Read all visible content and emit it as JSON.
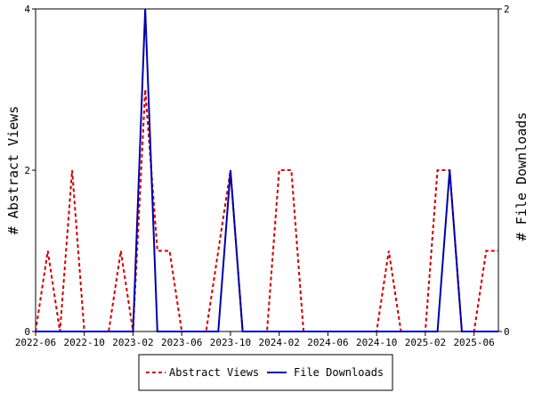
{
  "chart_data": {
    "type": "line",
    "ylabel_left": "# Abstract Views",
    "ylabel_right": "# File Downloads",
    "x_tick_labels": [
      "2022-06",
      "2022-10",
      "2023-02",
      "2023-06",
      "2023-10",
      "2024-02",
      "2024-06",
      "2024-10",
      "2025-02",
      "2025-06"
    ],
    "y_left_ticks": [
      "0",
      "2",
      "4"
    ],
    "y_right_ticks": [
      "0",
      "2"
    ],
    "ylim_left": [
      0,
      4
    ],
    "ylim_right": [
      0,
      2
    ],
    "x": [
      "2022-06",
      "2022-07",
      "2022-08",
      "2022-09",
      "2022-10",
      "2022-11",
      "2022-12",
      "2023-01",
      "2023-02",
      "2023-03",
      "2023-04",
      "2023-05",
      "2023-06",
      "2023-07",
      "2023-08",
      "2023-09",
      "2023-10",
      "2023-11",
      "2023-12",
      "2024-01",
      "2024-02",
      "2024-03",
      "2024-04",
      "2024-05",
      "2024-06",
      "2024-07",
      "2024-08",
      "2024-09",
      "2024-10",
      "2024-11",
      "2024-12",
      "2025-01",
      "2025-02",
      "2025-03",
      "2025-04",
      "2025-05",
      "2025-06",
      "2025-07",
      "2025-08"
    ],
    "series": [
      {
        "name": "Abstract Views",
        "axis": "left",
        "color": "#cc0000",
        "style": "dashed",
        "values": [
          0,
          1,
          0,
          2,
          0,
          0,
          0,
          1,
          0,
          3,
          1,
          1,
          0,
          0,
          0,
          1,
          2,
          0,
          0,
          0,
          2,
          2,
          0,
          0,
          0,
          0,
          0,
          0,
          0,
          1,
          0,
          0,
          0,
          2,
          2,
          0,
          0,
          1,
          1
        ]
      },
      {
        "name": "File Downloads",
        "axis": "right",
        "color": "#0000aa",
        "style": "solid",
        "values": [
          0,
          0,
          0,
          0,
          0,
          0,
          0,
          0,
          0,
          2,
          0,
          0,
          0,
          0,
          0,
          0,
          1,
          0,
          0,
          0,
          0,
          0,
          0,
          0,
          0,
          0,
          0,
          0,
          0,
          0,
          0,
          0,
          0,
          0,
          1,
          0,
          0,
          0,
          0
        ]
      }
    ],
    "legend_position": "bottom",
    "grid": false
  }
}
